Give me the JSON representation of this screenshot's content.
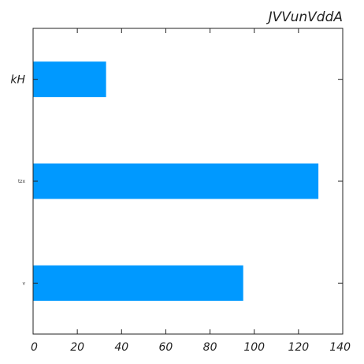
{
  "chart_data": {
    "type": "bar",
    "orientation": "horizontal",
    "title": "JVVunVddA",
    "xlabel": "",
    "ylabel": "",
    "categories": [
      "kH",
      "tzx",
      "v"
    ],
    "values": [
      33,
      129,
      95
    ],
    "xlim": [
      0,
      140
    ],
    "xticks": [
      "0",
      "20",
      "40",
      "60",
      "80",
      "100",
      "120",
      "140"
    ],
    "bar_color": "#0099ff",
    "grid": false,
    "legend": "none"
  }
}
